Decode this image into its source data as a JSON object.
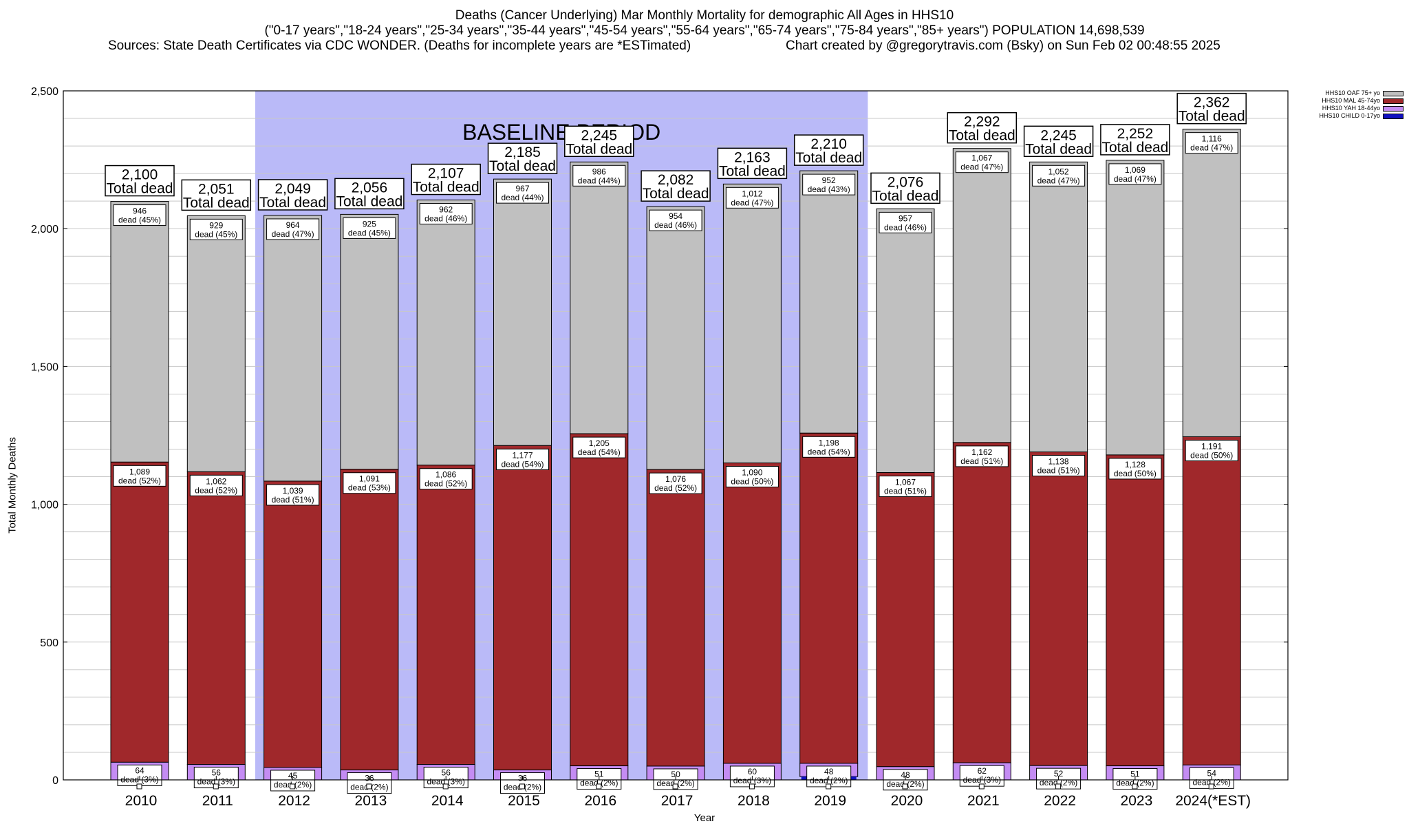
{
  "header": {
    "line1": "Deaths (Cancer Underlying) Mar Monthly Mortality for demographic All Ages in HHS10",
    "line2": "(\"0-17 years\",\"18-24 years\",\"25-34 years\",\"35-44 years\",\"45-54 years\",\"55-64 years\",\"65-74 years\",\"75-84 years\",\"85+ years\") POPULATION 14,698,539",
    "line3_left": "Sources: State Death Certificates via CDC WONDER. (Deaths for incomplete years are *ESTimated)",
    "line3_right": "Chart created by @gregorytravis.com (Bsky) on Sun Feb 02 00:48:55 2025"
  },
  "colors": {
    "oaf": "#c0c0c0",
    "mal": "#a0282b",
    "yah": "#c48cf3",
    "child": "#1010c0",
    "baseline": "#babaf8"
  },
  "chart_data": {
    "type": "bar",
    "stacked": true,
    "xlabel": "Year",
    "ylabel": "Total Monthly Deaths",
    "ylim": [
      0,
      2500
    ],
    "yticks": [
      "0",
      "500",
      "1,000",
      "1,500",
      "2,000",
      "2,500"
    ],
    "grid": true,
    "legend_position": "top-right",
    "baseline_label": "BASELINE PERIOD",
    "baseline_range": [
      "2012",
      "2019"
    ],
    "total_label": "Total dead",
    "dead_word": "dead",
    "categories": [
      "2010",
      "2011",
      "2012",
      "2013",
      "2014",
      "2015",
      "2016",
      "2017",
      "2018",
      "2019",
      "2020",
      "2021",
      "2022",
      "2023",
      "2024(*EST)"
    ],
    "totals": [
      "2,100",
      "2,051",
      "2,049",
      "2,056",
      "2,107",
      "2,185",
      "2,245",
      "2,082",
      "2,163",
      "2,210",
      "2,076",
      "2,292",
      "2,245",
      "2,252",
      "2,362"
    ],
    "series": [
      {
        "name": "HHS10 CHILD 0-17yo",
        "values": [
          0,
          0,
          0,
          0,
          0,
          0,
          0,
          0,
          0,
          12,
          0,
          0,
          0,
          0,
          0
        ],
        "labels": [],
        "pcts": []
      },
      {
        "name": "HHS10 YAH 18-44yo",
        "values": [
          64,
          56,
          45,
          36,
          56,
          36,
          51,
          50,
          60,
          48,
          48,
          62,
          52,
          51,
          54
        ],
        "labels": [
          "64",
          "56",
          "45",
          "36",
          "56",
          "36",
          "51",
          "50",
          "60",
          "48",
          "48",
          "62",
          "52",
          "51",
          "54"
        ],
        "pcts": [
          "(3%)",
          "(3%)",
          "(2%)",
          "(2%)",
          "(3%)",
          "(2%)",
          "(2%)",
          "(2%)",
          "(3%)",
          "(2%)",
          "(2%)",
          "(3%)",
          "(2%)",
          "(2%)",
          "(2%)"
        ]
      },
      {
        "name": "HHS10 MAL 45-74yo",
        "values": [
          1089,
          1062,
          1039,
          1091,
          1086,
          1177,
          1205,
          1076,
          1090,
          1198,
          1067,
          1162,
          1138,
          1128,
          1191
        ],
        "labels": [
          "1,089",
          "1,062",
          "1,039",
          "1,091",
          "1,086",
          "1,177",
          "1,205",
          "1,076",
          "1,090",
          "1,198",
          "1,067",
          "1,162",
          "1,138",
          "1,128",
          "1,191"
        ],
        "pcts": [
          "(52%)",
          "(52%)",
          "(51%)",
          "(53%)",
          "(52%)",
          "(54%)",
          "(54%)",
          "(52%)",
          "(50%)",
          "(54%)",
          "(51%)",
          "(51%)",
          "(51%)",
          "(50%)",
          "(50%)"
        ]
      },
      {
        "name": "HHS10 OAF 75+ yo",
        "values": [
          946,
          929,
          964,
          925,
          962,
          967,
          986,
          954,
          1012,
          952,
          957,
          1067,
          1052,
          1069,
          1116
        ],
        "labels": [
          "946",
          "929",
          "964",
          "925",
          "962",
          "967",
          "986",
          "954",
          "1,012",
          "952",
          "957",
          "1,067",
          "1,052",
          "1,069",
          "1,116"
        ],
        "pcts": [
          "(45%)",
          "(45%)",
          "(47%)",
          "(45%)",
          "(46%)",
          "(44%)",
          "(44%)",
          "(46%)",
          "(47%)",
          "(43%)",
          "(46%)",
          "(47%)",
          "(47%)",
          "(47%)",
          "(47%)"
        ]
      }
    ]
  }
}
